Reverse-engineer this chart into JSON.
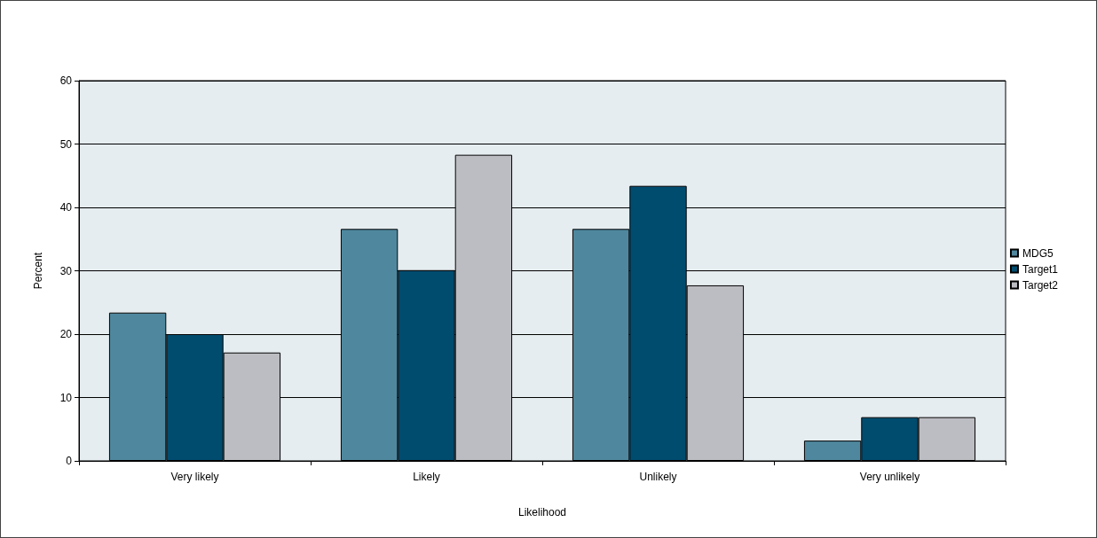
{
  "chart_data": {
    "type": "bar",
    "xlabel": "Likelihood",
    "ylabel": "Percent",
    "categories": [
      "Very likely",
      "Likely",
      "Unlikely",
      "Very unlikely"
    ],
    "series": [
      {
        "name": "MDG5",
        "color": "#4f889e",
        "values": [
          23.4,
          36.6,
          36.6,
          3.2
        ]
      },
      {
        "name": "Target1",
        "color": "#004c6f",
        "values": [
          20.0,
          30.1,
          43.4,
          6.9
        ]
      },
      {
        "name": "Target2",
        "color": "#bcbdc2",
        "values": [
          17.1,
          48.3,
          27.7,
          6.9
        ]
      }
    ],
    "ylim": [
      0,
      60
    ],
    "yticks": [
      0,
      10,
      20,
      30,
      40,
      50,
      60
    ],
    "grid": "y",
    "legend": "right"
  }
}
